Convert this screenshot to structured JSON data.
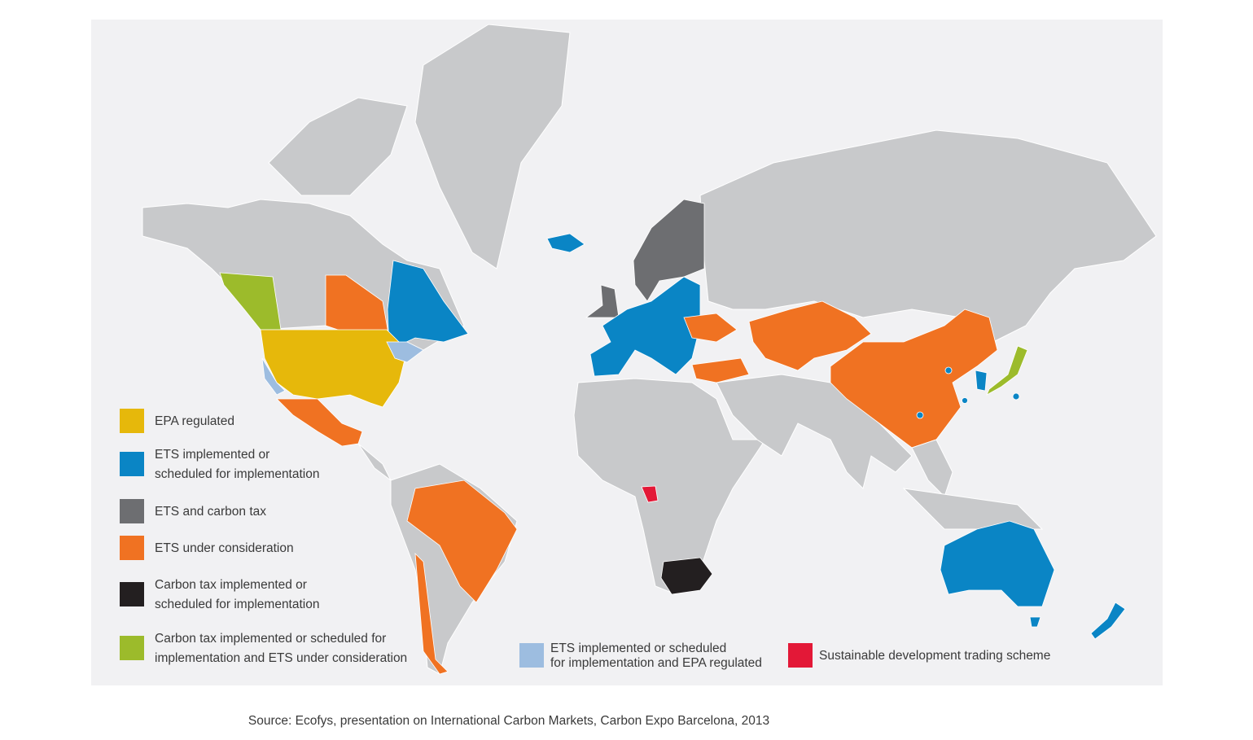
{
  "legend": [
    {
      "label": [
        "EPA regulated"
      ],
      "color": "#e6b80b"
    },
    {
      "label": [
        "ETS implemented or",
        "scheduled for implementation"
      ],
      "color": "#0a85c5"
    },
    {
      "label": [
        "ETS and carbon tax"
      ],
      "color": "#6d6e71"
    },
    {
      "label": [
        "ETS under consideration"
      ],
      "color": "#f07222"
    },
    {
      "label": [
        "Carbon tax implemented or",
        "scheduled for implementation"
      ],
      "color": "#231f20"
    },
    {
      "label": [
        "Carbon tax implemented or scheduled for",
        "implementation and ETS under consideration"
      ],
      "color": "#9cbb2b"
    },
    {
      "label": [
        "ETS implemented or scheduled",
        "for implementation and EPA regulated"
      ],
      "color": "#9dbde0"
    },
    {
      "label": [
        "Sustainable development trading scheme"
      ],
      "color": "#e31837"
    }
  ],
  "source": "Source: Ecofys, presentation on International Carbon Markets, Carbon Expo Barcelona, 2013"
}
